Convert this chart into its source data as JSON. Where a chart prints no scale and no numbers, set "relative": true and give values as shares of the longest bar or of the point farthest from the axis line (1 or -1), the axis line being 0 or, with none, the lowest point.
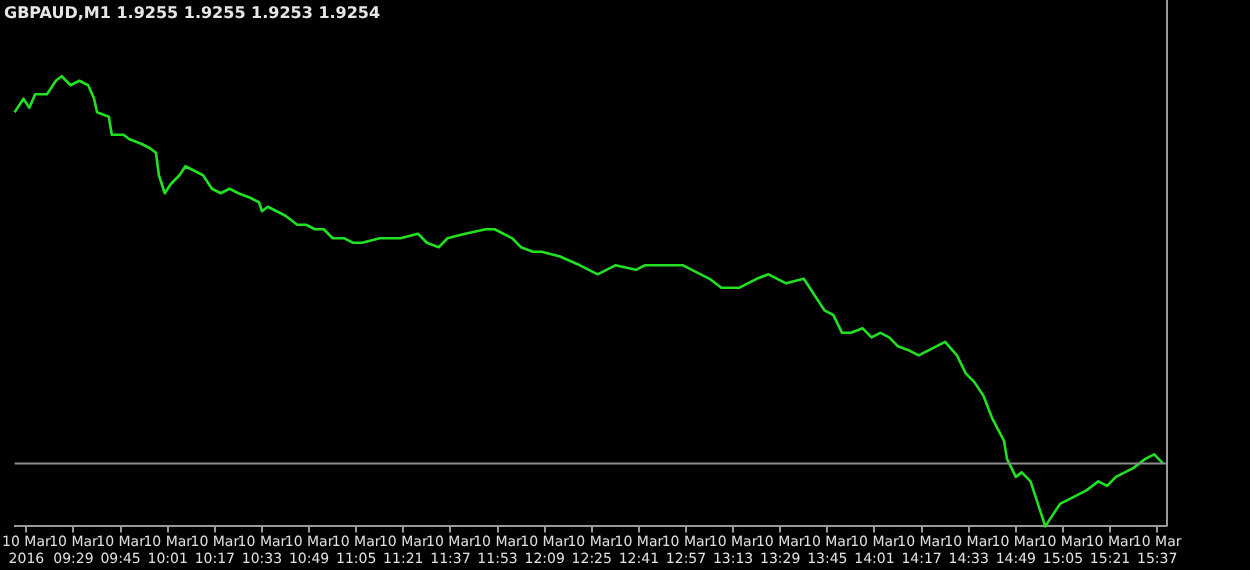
{
  "chart_data": {
    "type": "line",
    "title": "GBPAUD,M1 1.9255 1.9255 1.9253 1.9254",
    "relative": true,
    "legend": false,
    "grid": false,
    "marker": "none",
    "line_style": "solid",
    "xlim": [
      "2016-03-10T09:09",
      "2016-03-10T15:40"
    ],
    "xticks": [
      {
        "value": "2016-03-10T09:13",
        "label": "10 Mar 2016"
      },
      {
        "value": "2016-03-10T09:29",
        "label": "10 Mar 09:29"
      },
      {
        "value": "2016-03-10T09:45",
        "label": "10 Mar 09:45"
      },
      {
        "value": "2016-03-10T10:01",
        "label": "10 Mar 10:01"
      },
      {
        "value": "2016-03-10T10:17",
        "label": "10 Mar 10:17"
      },
      {
        "value": "2016-03-10T10:33",
        "label": "10 Mar 10:33"
      },
      {
        "value": "2016-03-10T10:49",
        "label": "10 Mar 10:49"
      },
      {
        "value": "2016-03-10T11:05",
        "label": "10 Mar 11:05"
      },
      {
        "value": "2016-03-10T11:21",
        "label": "10 Mar 11:21"
      },
      {
        "value": "2016-03-10T11:37",
        "label": "10 Mar 11:37"
      },
      {
        "value": "2016-03-10T11:53",
        "label": "10 Mar 11:53"
      },
      {
        "value": "2016-03-10T12:09",
        "label": "10 Mar 12:09"
      },
      {
        "value": "2016-03-10T12:25",
        "label": "10 Mar 12:25"
      },
      {
        "value": "2016-03-10T12:41",
        "label": "10 Mar 12:41"
      },
      {
        "value": "2016-03-10T12:57",
        "label": "10 Mar 12:57"
      },
      {
        "value": "2016-03-10T13:13",
        "label": "10 Mar 13:13"
      },
      {
        "value": "2016-03-10T13:29",
        "label": "10 Mar 13:29"
      },
      {
        "value": "2016-03-10T13:45",
        "label": "10 Mar 13:45"
      },
      {
        "value": "2016-03-10T14:01",
        "label": "10 Mar 14:01"
      },
      {
        "value": "2016-03-10T14:17",
        "label": "10 Mar 14:17"
      },
      {
        "value": "2016-03-10T14:33",
        "label": "10 Mar 14:33"
      },
      {
        "value": "2016-03-10T14:49",
        "label": "10 Mar 14:49"
      },
      {
        "value": "2016-03-10T15:05",
        "label": "10 Mar 15:05"
      },
      {
        "value": "2016-03-10T15:21",
        "label": "10 Mar 15:21"
      },
      {
        "value": "2016-03-10T15:37",
        "label": "10 Mar 15:37"
      }
    ],
    "ref_lines": [
      {
        "axis": "y",
        "value": 0.14,
        "color": "#8c8c8c"
      }
    ],
    "series": [
      {
        "color": "#22e022",
        "x": [
          "2016-03-10T09:09",
          "2016-03-10T09:12",
          "2016-03-10T09:14",
          "2016-03-10T09:16",
          "2016-03-10T09:20",
          "2016-03-10T09:23",
          "2016-03-10T09:25",
          "2016-03-10T09:28",
          "2016-03-10T09:31",
          "2016-03-10T09:34",
          "2016-03-10T09:36",
          "2016-03-10T09:37",
          "2016-03-10T09:41",
          "2016-03-10T09:42",
          "2016-03-10T09:46",
          "2016-03-10T09:48",
          "2016-03-10T09:52",
          "2016-03-10T09:55",
          "2016-03-10T09:57",
          "2016-03-10T09:58",
          "2016-03-10T10:00",
          "2016-03-10T10:02",
          "2016-03-10T10:05",
          "2016-03-10T10:07",
          "2016-03-10T10:10",
          "2016-03-10T10:13",
          "2016-03-10T10:16",
          "2016-03-10T10:19",
          "2016-03-10T10:22",
          "2016-03-10T10:25",
          "2016-03-10T10:29",
          "2016-03-10T10:32",
          "2016-03-10T10:33",
          "2016-03-10T10:35",
          "2016-03-10T10:38",
          "2016-03-10T10:41",
          "2016-03-10T10:45",
          "2016-03-10T10:48",
          "2016-03-10T10:51",
          "2016-03-10T10:54",
          "2016-03-10T10:57",
          "2016-03-10T11:01",
          "2016-03-10T11:04",
          "2016-03-10T11:07",
          "2016-03-10T11:13",
          "2016-03-10T11:20",
          "2016-03-10T11:26",
          "2016-03-10T11:29",
          "2016-03-10T11:33",
          "2016-03-10T11:36",
          "2016-03-10T11:42",
          "2016-03-10T11:49",
          "2016-03-10T11:52",
          "2016-03-10T11:55",
          "2016-03-10T11:58",
          "2016-03-10T12:01",
          "2016-03-10T12:05",
          "2016-03-10T12:08",
          "2016-03-10T12:14",
          "2016-03-10T12:21",
          "2016-03-10T12:24",
          "2016-03-10T12:27",
          "2016-03-10T12:33",
          "2016-03-10T12:40",
          "2016-03-10T12:43",
          "2016-03-10T12:49",
          "2016-03-10T12:56",
          "2016-03-10T13:02",
          "2016-03-10T13:05",
          "2016-03-10T13:09",
          "2016-03-10T13:15",
          "2016-03-10T13:21",
          "2016-03-10T13:25",
          "2016-03-10T13:28",
          "2016-03-10T13:31",
          "2016-03-10T13:37",
          "2016-03-10T13:41",
          "2016-03-10T13:44",
          "2016-03-10T13:47",
          "2016-03-10T13:50",
          "2016-03-10T13:53",
          "2016-03-10T13:57",
          "2016-03-10T14:00",
          "2016-03-10T14:03",
          "2016-03-10T14:06",
          "2016-03-10T14:09",
          "2016-03-10T14:13",
          "2016-03-10T14:16",
          "2016-03-10T14:22",
          "2016-03-10T14:25",
          "2016-03-10T14:29",
          "2016-03-10T14:32",
          "2016-03-10T14:35",
          "2016-03-10T14:38",
          "2016-03-10T14:41",
          "2016-03-10T14:45",
          "2016-03-10T14:46",
          "2016-03-10T14:49",
          "2016-03-10T14:51",
          "2016-03-10T14:54",
          "2016-03-10T14:57",
          "2016-03-10T14:59",
          "2016-03-10T15:02",
          "2016-03-10T15:04",
          "2016-03-10T15:07",
          "2016-03-10T15:10",
          "2016-03-10T15:13",
          "2016-03-10T15:17",
          "2016-03-10T15:20",
          "2016-03-10T15:23",
          "2016-03-10T15:26",
          "2016-03-10T15:29",
          "2016-03-10T15:33",
          "2016-03-10T15:36",
          "2016-03-10T15:39"
        ],
        "values": [
          0.92,
          0.95,
          0.93,
          0.96,
          0.96,
          0.99,
          1,
          0.98,
          0.99,
          0.98,
          0.95,
          0.92,
          0.91,
          0.87,
          0.87,
          0.86,
          0.85,
          0.84,
          0.83,
          0.78,
          0.74,
          0.76,
          0.78,
          0.8,
          0.79,
          0.78,
          0.75,
          0.74,
          0.75,
          0.74,
          0.73,
          0.72,
          0.7,
          0.71,
          0.7,
          0.69,
          0.67,
          0.67,
          0.66,
          0.66,
          0.64,
          0.64,
          0.63,
          0.63,
          0.64,
          0.64,
          0.65,
          0.63,
          0.62,
          0.64,
          0.65,
          0.66,
          0.66,
          0.65,
          0.64,
          0.62,
          0.61,
          0.61,
          0.6,
          0.58,
          0.57,
          0.56,
          0.58,
          0.57,
          0.58,
          0.58,
          0.58,
          0.56,
          0.55,
          0.53,
          0.53,
          0.55,
          0.56,
          0.55,
          0.54,
          0.55,
          0.51,
          0.48,
          0.47,
          0.43,
          0.43,
          0.44,
          0.42,
          0.43,
          0.42,
          0.4,
          0.39,
          0.38,
          0.4,
          0.41,
          0.38,
          0.34,
          0.32,
          0.29,
          0.24,
          0.19,
          0.15,
          0.11,
          0.12,
          0.1,
          0.04,
          0,
          0.03,
          0.05,
          0.06,
          0.07,
          0.08,
          0.1,
          0.09,
          0.11,
          0.12,
          0.13,
          0.15,
          0.16,
          0.14
        ]
      }
    ]
  }
}
